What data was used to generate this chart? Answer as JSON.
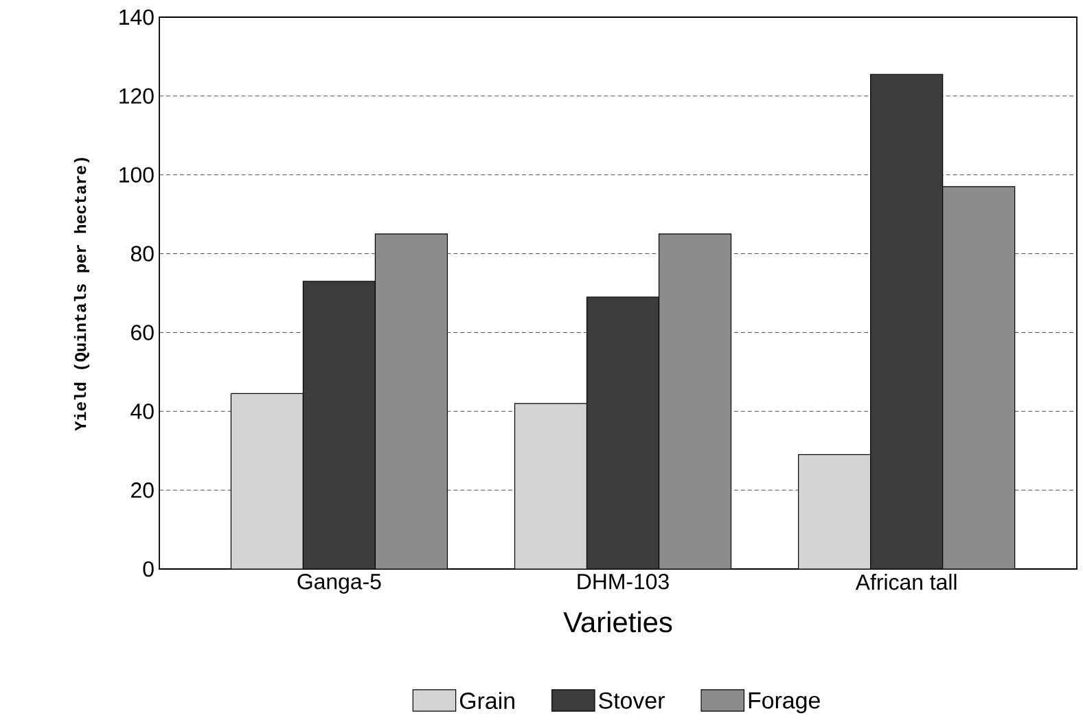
{
  "chart_data": {
    "type": "bar",
    "xlabel": "Varieties",
    "ylabel": "Yield (Quintals per hectare)",
    "categories": [
      "Ganga-5",
      "DHM-103",
      "African tall"
    ],
    "series": [
      {
        "name": "Grain",
        "color": "#d4d4d4",
        "values": [
          44.5,
          42,
          29
        ]
      },
      {
        "name": "Stover",
        "color": "#3c3c3c",
        "values": [
          73,
          69,
          125.5
        ]
      },
      {
        "name": "Forage",
        "color": "#8c8c8c",
        "values": [
          85,
          85,
          97
        ]
      }
    ],
    "ylim": [
      0,
      140
    ],
    "yticks": [
      0,
      20,
      40,
      60,
      80,
      100,
      120,
      140
    ],
    "grid": "y",
    "legend": "bottom"
  }
}
